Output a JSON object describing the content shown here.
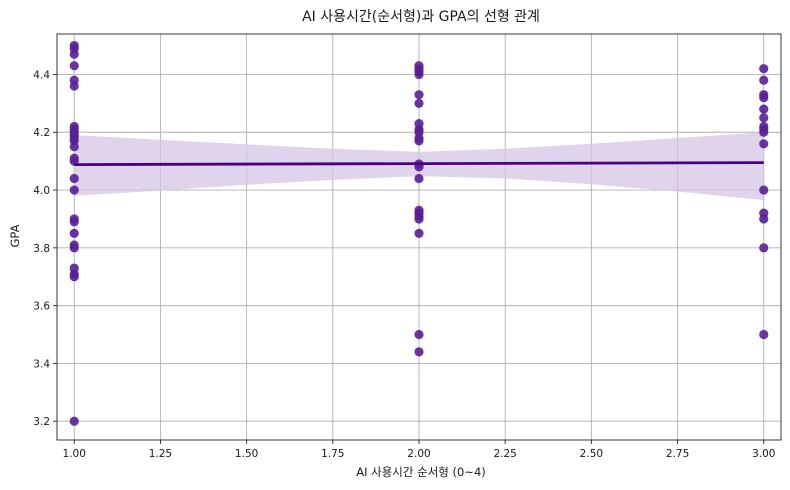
{
  "chart_data": {
    "type": "scatter",
    "title": "AI 사용시간(순서형)과 GPA의 선형 관계",
    "xlabel": "AI 사용시간 순서형 (0~4)",
    "ylabel": "GPA",
    "xlim": [
      0.95,
      3.05
    ],
    "ylim": [
      3.135,
      4.54
    ],
    "grid": true,
    "x_ticks": [
      1.0,
      1.25,
      1.5,
      1.75,
      2.0,
      2.25,
      2.5,
      2.75,
      3.0
    ],
    "x_tick_labels": [
      "1.00",
      "1.25",
      "1.50",
      "1.75",
      "2.00",
      "2.25",
      "2.50",
      "2.75",
      "3.00"
    ],
    "y_ticks": [
      3.2,
      3.4,
      3.6,
      3.8,
      4.0,
      4.2,
      4.4
    ],
    "y_tick_labels": [
      "3.2",
      "3.4",
      "3.6",
      "3.8",
      "4.0",
      "4.2",
      "4.4"
    ],
    "colors": {
      "points": "#5a1f96",
      "regression_line": "#4b0082",
      "confidence_band": "#d6c6e6"
    },
    "points": [
      {
        "x": 1,
        "y": 4.5
      },
      {
        "x": 1,
        "y": 4.49
      },
      {
        "x": 1,
        "y": 4.47
      },
      {
        "x": 1,
        "y": 4.43
      },
      {
        "x": 1,
        "y": 4.38
      },
      {
        "x": 1,
        "y": 4.36
      },
      {
        "x": 1,
        "y": 4.22
      },
      {
        "x": 1,
        "y": 4.21
      },
      {
        "x": 1,
        "y": 4.2
      },
      {
        "x": 1,
        "y": 4.19
      },
      {
        "x": 1,
        "y": 4.18
      },
      {
        "x": 1,
        "y": 4.17
      },
      {
        "x": 1,
        "y": 4.15
      },
      {
        "x": 1,
        "y": 4.11
      },
      {
        "x": 1,
        "y": 4.1
      },
      {
        "x": 1,
        "y": 4.04
      },
      {
        "x": 1,
        "y": 4.0
      },
      {
        "x": 1,
        "y": 3.9
      },
      {
        "x": 1,
        "y": 3.89
      },
      {
        "x": 1,
        "y": 3.85
      },
      {
        "x": 1,
        "y": 3.81
      },
      {
        "x": 1,
        "y": 3.8
      },
      {
        "x": 1,
        "y": 3.73
      },
      {
        "x": 1,
        "y": 3.71
      },
      {
        "x": 1,
        "y": 3.7
      },
      {
        "x": 1,
        "y": 3.2
      },
      {
        "x": 2,
        "y": 4.43
      },
      {
        "x": 2,
        "y": 4.42
      },
      {
        "x": 2,
        "y": 4.41
      },
      {
        "x": 2,
        "y": 4.4
      },
      {
        "x": 2,
        "y": 4.33
      },
      {
        "x": 2,
        "y": 4.3
      },
      {
        "x": 2,
        "y": 4.23
      },
      {
        "x": 2,
        "y": 4.21
      },
      {
        "x": 2,
        "y": 4.2
      },
      {
        "x": 2,
        "y": 4.18
      },
      {
        "x": 2,
        "y": 4.17
      },
      {
        "x": 2,
        "y": 4.09
      },
      {
        "x": 2,
        "y": 4.08
      },
      {
        "x": 2,
        "y": 4.04
      },
      {
        "x": 2,
        "y": 3.93
      },
      {
        "x": 2,
        "y": 3.92
      },
      {
        "x": 2,
        "y": 3.91
      },
      {
        "x": 2,
        "y": 3.9
      },
      {
        "x": 2,
        "y": 3.85
      },
      {
        "x": 2,
        "y": 3.5
      },
      {
        "x": 2,
        "y": 3.44
      },
      {
        "x": 3,
        "y": 4.42
      },
      {
        "x": 3,
        "y": 4.38
      },
      {
        "x": 3,
        "y": 4.33
      },
      {
        "x": 3,
        "y": 4.32
      },
      {
        "x": 3,
        "y": 4.28
      },
      {
        "x": 3,
        "y": 4.25
      },
      {
        "x": 3,
        "y": 4.22
      },
      {
        "x": 3,
        "y": 4.21
      },
      {
        "x": 3,
        "y": 4.2
      },
      {
        "x": 3,
        "y": 4.16
      },
      {
        "x": 3,
        "y": 4.0
      },
      {
        "x": 3,
        "y": 3.92
      },
      {
        "x": 3,
        "y": 3.9
      },
      {
        "x": 3,
        "y": 3.8
      },
      {
        "x": 3,
        "y": 3.5
      }
    ],
    "regression": {
      "x_range": [
        1.0,
        3.0
      ],
      "y_start": 4.088,
      "y_end": 4.095,
      "ci_upper": [
        {
          "x": 1.0,
          "y": 4.19
        },
        {
          "x": 1.25,
          "y": 4.174
        },
        {
          "x": 1.5,
          "y": 4.158
        },
        {
          "x": 1.75,
          "y": 4.143
        },
        {
          "x": 2.0,
          "y": 4.132
        },
        {
          "x": 2.25,
          "y": 4.143
        },
        {
          "x": 2.5,
          "y": 4.16
        },
        {
          "x": 2.75,
          "y": 4.18
        },
        {
          "x": 3.0,
          "y": 4.2
        }
      ],
      "ci_lower": [
        {
          "x": 1.0,
          "y": 3.98
        },
        {
          "x": 1.25,
          "y": 3.998
        },
        {
          "x": 1.5,
          "y": 4.018
        },
        {
          "x": 1.75,
          "y": 4.035
        },
        {
          "x": 2.0,
          "y": 4.048
        },
        {
          "x": 2.25,
          "y": 4.04
        },
        {
          "x": 2.5,
          "y": 4.02
        },
        {
          "x": 2.75,
          "y": 3.995
        },
        {
          "x": 3.0,
          "y": 3.965
        }
      ]
    }
  }
}
